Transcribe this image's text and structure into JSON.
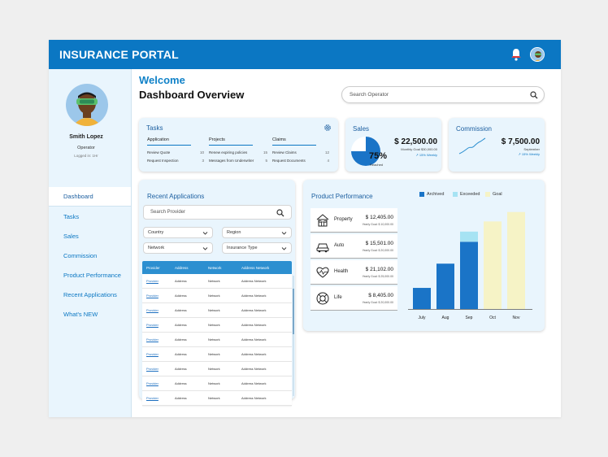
{
  "app": {
    "title": "INSURANCE PORTAL"
  },
  "colors": {
    "primary": "#0b77c3",
    "archived": "#1a74c7",
    "exceeded": "#a6e3f3",
    "goal": "#f6f3c6"
  },
  "user": {
    "name": "Smith Lopez",
    "role": "Operator",
    "logged": "Logged in: 1Hr"
  },
  "sidebar": {
    "items": [
      {
        "label": "Dashboard"
      },
      {
        "label": "Tasks"
      },
      {
        "label": "Sales"
      },
      {
        "label": "Commission"
      },
      {
        "label": "Product Performance"
      },
      {
        "label": "Recent Applications"
      },
      {
        "label": "What's NEW"
      }
    ]
  },
  "header": {
    "welcome": "Welcome",
    "title": "Dashboard Overview",
    "search_placeholder": "Search Operator"
  },
  "tasks": {
    "title": "Tasks",
    "columns": [
      {
        "head": "Application",
        "rows": [
          {
            "label": "Review Quote",
            "count": "10"
          },
          {
            "label": "Request Inspection",
            "count": "3"
          }
        ]
      },
      {
        "head": "Projects",
        "rows": [
          {
            "label": "Renew expiring policies",
            "count": "15"
          },
          {
            "label": "Messages from Underwriter",
            "count": "5"
          }
        ]
      },
      {
        "head": "Claims",
        "rows": [
          {
            "label": "Review Claims",
            "count": "12"
          },
          {
            "label": "Request Documents",
            "count": "4"
          }
        ]
      }
    ]
  },
  "sales": {
    "title": "Sales",
    "value": "$ 22,500.00",
    "sub": "Monthly Goal $30,000.00",
    "change": "↗ 15% Weekly",
    "percent": "75%",
    "percent_value": 75,
    "reached": "Reached"
  },
  "commission": {
    "title": "Commission",
    "value": "$ 7,500.00",
    "month": "September",
    "change": "↗ 15% Weekly"
  },
  "recent": {
    "title": "Recent Applications",
    "search_placeholder": "Search Provider",
    "filters": [
      "Country",
      "Region",
      "Network",
      "Insurance Type"
    ],
    "columns": [
      "Provider",
      "Address",
      "Network",
      "Address Network"
    ],
    "rows": [
      [
        "Provider",
        "Address",
        "Network",
        "Address Network"
      ],
      [
        "Provider",
        "Address",
        "Network",
        "Address Network"
      ],
      [
        "Provider",
        "Address",
        "Network",
        "Address Network"
      ],
      [
        "Provider",
        "Address",
        "Network",
        "Address Network"
      ],
      [
        "Provider",
        "Address",
        "Network",
        "Address Network"
      ],
      [
        "Provider",
        "Address",
        "Network",
        "Address Network"
      ],
      [
        "Provider",
        "Address",
        "Network",
        "Address Network"
      ],
      [
        "Provider",
        "Address",
        "Network",
        "Address Network"
      ],
      [
        "Provider",
        "Address",
        "Network",
        "Address Network"
      ]
    ]
  },
  "performance": {
    "title": "Product Performance",
    "legend": [
      "Archived",
      "Exceeded",
      "Goal"
    ],
    "products": [
      {
        "name": "Property",
        "value": "$ 12,405.00",
        "sub": "Yearly Goal: $ 10,000.00",
        "icon": "house-icon"
      },
      {
        "name": "Auto",
        "value": "$ 15,501.00",
        "sub": "Yearly Goal: $ 20,000.00",
        "icon": "car-icon"
      },
      {
        "name": "Health",
        "value": "$ 21,102.00",
        "sub": "Yearly Goal: $ 25,000.00",
        "icon": "heart-icon"
      },
      {
        "name": "Life",
        "value": "$ 8,405.00",
        "sub": "Yearly Goal: $ 20,000.00",
        "icon": "lifebuoy-icon"
      }
    ]
  },
  "chart_data": {
    "type": "bar",
    "categories": [
      "July",
      "Aug",
      "Sep",
      "Oct",
      "Nov"
    ],
    "series": [
      {
        "name": "Archived",
        "values": [
          27,
          58,
          86,
          0,
          0
        ]
      },
      {
        "name": "Exceeded",
        "values": [
          0,
          0,
          13,
          0,
          0
        ]
      },
      {
        "name": "Goal",
        "values": [
          0,
          0,
          0,
          112,
          124
        ]
      }
    ],
    "ylim": [
      0,
      130
    ],
    "stacked": true,
    "legend": "top",
    "grid": false
  }
}
